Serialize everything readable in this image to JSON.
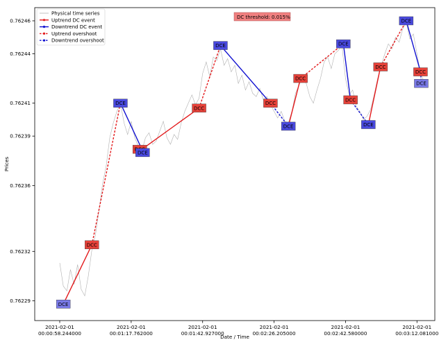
{
  "chart_data": {
    "type": "line",
    "title": "",
    "xlabel": "Date / Time",
    "ylabel": "Prices",
    "threshold_label": "DC threshold: 0.015%",
    "grid": false,
    "legend_position": "top-left",
    "x_ticks": [
      {
        "t": 58.244,
        "line1": "2021-02-01",
        "line2": "00:00:58.244000"
      },
      {
        "t": 77.762,
        "line1": "2021-02-01",
        "line2": "00:01:17.762000"
      },
      {
        "t": 102.927,
        "line1": "2021-02-01",
        "line2": "00:01:42.927000"
      },
      {
        "t": 146.205,
        "line1": "2021-02-01",
        "line2": "00:02:26.205000"
      },
      {
        "t": 162.58,
        "line1": "2021-02-01",
        "line2": "00:02:42.580000"
      },
      {
        "t": 192.081,
        "line1": "2021-02-01",
        "line2": "00:03:12.081000"
      }
    ],
    "x_tick_indices": [
      0,
      10,
      20,
      30,
      40,
      50
    ],
    "x_index_range": [
      -3.5,
      52.5
    ],
    "y_ticks": [
      "0.76229",
      "0.76232",
      "0.76236",
      "0.76239",
      "0.76241",
      "0.76244",
      "0.76246"
    ],
    "y_range": [
      0.762278,
      0.762468
    ],
    "legend": [
      {
        "label": "Physical time series",
        "color": "#b0b0b0",
        "style": "thin"
      },
      {
        "label": "Uptrend DC event",
        "color": "#e31a1c",
        "style": "solid"
      },
      {
        "label": "Downtrend DC event",
        "color": "#1010d0",
        "style": "solid"
      },
      {
        "label": "Uptrend overshoot",
        "color": "#e31a1c",
        "style": "dotted"
      },
      {
        "label": "Downtrend overshoot",
        "color": "#1010d0",
        "style": "dotted"
      }
    ],
    "colors": {
      "up": "#e31a1c",
      "down": "#1010d0",
      "dcc_box": "#e8423a",
      "dce_box": "#4a4ae0",
      "dce_light": "#7a7ae8",
      "threshold_box": "#f08080",
      "series": "#b0b0b0"
    },
    "segments": [
      {
        "kind": "up_dc",
        "from": [
          0.5,
          0.762288
        ],
        "to": [
          4.5,
          0.762324
        ]
      },
      {
        "kind": "up_os",
        "from": [
          4.5,
          0.762324
        ],
        "to": [
          8.5,
          0.76241
        ]
      },
      {
        "kind": "down_dc",
        "from": [
          8.5,
          0.76241
        ],
        "to": [
          11.5,
          0.762382
        ]
      },
      {
        "kind": "up_dc",
        "from": [
          11.5,
          0.762382
        ],
        "to": [
          19.5,
          0.762407
        ]
      },
      {
        "kind": "up_os",
        "from": [
          19.5,
          0.762407
        ],
        "to": [
          22.5,
          0.762445
        ]
      },
      {
        "kind": "down_dc",
        "from": [
          22.5,
          0.762445
        ],
        "to": [
          29.5,
          0.76241
        ]
      },
      {
        "kind": "down_os",
        "from": [
          29.5,
          0.76241
        ],
        "to": [
          32.0,
          0.762396
        ]
      },
      {
        "kind": "up_dc",
        "from": [
          32.0,
          0.762396
        ],
        "to": [
          33.7,
          0.762425
        ]
      },
      {
        "kind": "up_os",
        "from": [
          33.7,
          0.762425
        ],
        "to": [
          39.7,
          0.762446
        ]
      },
      {
        "kind": "down_dc",
        "from": [
          39.7,
          0.762446
        ],
        "to": [
          40.7,
          0.762412
        ]
      },
      {
        "kind": "down_os",
        "from": [
          40.7,
          0.762412
        ],
        "to": [
          43.2,
          0.762397
        ]
      },
      {
        "kind": "up_dc",
        "from": [
          43.2,
          0.762397
        ],
        "to": [
          44.9,
          0.762432
        ]
      },
      {
        "kind": "up_os",
        "from": [
          44.9,
          0.762432
        ],
        "to": [
          48.5,
          0.76246
        ]
      },
      {
        "kind": "down_dc",
        "from": [
          48.5,
          0.76246
        ],
        "to": [
          50.5,
          0.762429
        ]
      },
      {
        "kind": "down_os",
        "from": [
          50.5,
          0.762429
        ],
        "to": [
          50.6,
          0.762422
        ]
      }
    ],
    "markers": [
      {
        "text": "DCE",
        "type": "dce_light",
        "x": 0.5,
        "y": 0.762288
      },
      {
        "text": "DCC",
        "type": "dcc",
        "x": 4.5,
        "y": 0.762324
      },
      {
        "text": "DCE",
        "type": "dce",
        "x": 8.5,
        "y": 0.76241
      },
      {
        "text": "DCC",
        "type": "dcc",
        "x": 11.2,
        "y": 0.762382
      },
      {
        "text": "DCE",
        "type": "dce",
        "x": 11.6,
        "y": 0.76238
      },
      {
        "text": "DCC",
        "type": "dcc",
        "x": 19.5,
        "y": 0.762407
      },
      {
        "text": "DCE",
        "type": "dce",
        "x": 22.5,
        "y": 0.762445
      },
      {
        "text": "DCC",
        "type": "dcc",
        "x": 29.5,
        "y": 0.76241
      },
      {
        "text": "DCE",
        "type": "dce",
        "x": 32.0,
        "y": 0.762396
      },
      {
        "text": "DCC",
        "type": "dcc",
        "x": 33.7,
        "y": 0.762425
      },
      {
        "text": "DCE",
        "type": "dce",
        "x": 39.7,
        "y": 0.762446
      },
      {
        "text": "DCC",
        "type": "dcc",
        "x": 40.7,
        "y": 0.762412
      },
      {
        "text": "DCE",
        "type": "dce",
        "x": 43.2,
        "y": 0.762397
      },
      {
        "text": "DCC",
        "type": "dcc",
        "x": 44.9,
        "y": 0.762432
      },
      {
        "text": "DCE",
        "type": "dce",
        "x": 48.5,
        "y": 0.76246
      },
      {
        "text": "DCC",
        "type": "dcc",
        "x": 50.5,
        "y": 0.762429
      },
      {
        "text": "DCE",
        "type": "dce_light",
        "x": 50.6,
        "y": 0.762422
      }
    ],
    "series": [
      {
        "x": 0,
        "y": 0.762313
      },
      {
        "x": 0.5,
        "y": 0.762299
      },
      {
        "x": 1,
        "y": 0.762296
      },
      {
        "x": 1.5,
        "y": 0.762309
      },
      {
        "x": 2,
        "y": 0.7623
      },
      {
        "x": 2.5,
        "y": 0.762312
      },
      {
        "x": 3,
        "y": 0.762297
      },
      {
        "x": 3.5,
        "y": 0.762293
      },
      {
        "x": 4,
        "y": 0.762305
      },
      {
        "x": 4.5,
        "y": 0.762321
      },
      {
        "x": 5,
        "y": 0.76233
      },
      {
        "x": 5.5,
        "y": 0.762345
      },
      {
        "x": 6,
        "y": 0.762361
      },
      {
        "x": 6.5,
        "y": 0.762372
      },
      {
        "x": 7,
        "y": 0.762389
      },
      {
        "x": 7.5,
        "y": 0.762398
      },
      {
        "x": 8,
        "y": 0.762405
      },
      {
        "x": 8.5,
        "y": 0.76241
      },
      {
        "x": 9,
        "y": 0.762398
      },
      {
        "x": 9.5,
        "y": 0.762391
      },
      {
        "x": 10,
        "y": 0.762399
      },
      {
        "x": 10.5,
        "y": 0.762389
      },
      {
        "x": 11,
        "y": 0.762384
      },
      {
        "x": 11.5,
        "y": 0.762381
      },
      {
        "x": 12,
        "y": 0.762389
      },
      {
        "x": 12.5,
        "y": 0.762392
      },
      {
        "x": 13,
        "y": 0.762385
      },
      {
        "x": 13.5,
        "y": 0.762387
      },
      {
        "x": 14,
        "y": 0.762393
      },
      {
        "x": 14.5,
        "y": 0.762399
      },
      {
        "x": 15,
        "y": 0.762389
      },
      {
        "x": 15.5,
        "y": 0.762385
      },
      {
        "x": 16,
        "y": 0.762391
      },
      {
        "x": 16.5,
        "y": 0.762388
      },
      {
        "x": 17,
        "y": 0.762398
      },
      {
        "x": 17.5,
        "y": 0.762405
      },
      {
        "x": 18,
        "y": 0.76241
      },
      {
        "x": 18.5,
        "y": 0.762415
      },
      {
        "x": 19,
        "y": 0.762409
      },
      {
        "x": 19.5,
        "y": 0.762413
      },
      {
        "x": 20,
        "y": 0.762428
      },
      {
        "x": 20.5,
        "y": 0.762435
      },
      {
        "x": 21,
        "y": 0.762426
      },
      {
        "x": 21.5,
        "y": 0.762438
      },
      {
        "x": 22,
        "y": 0.762436
      },
      {
        "x": 22.5,
        "y": 0.762443
      },
      {
        "x": 23,
        "y": 0.762433
      },
      {
        "x": 23.5,
        "y": 0.762437
      },
      {
        "x": 24,
        "y": 0.762429
      },
      {
        "x": 24.5,
        "y": 0.762433
      },
      {
        "x": 25,
        "y": 0.762422
      },
      {
        "x": 25.5,
        "y": 0.762427
      },
      {
        "x": 26,
        "y": 0.762418
      },
      {
        "x": 26.5,
        "y": 0.762423
      },
      {
        "x": 27,
        "y": 0.762416
      },
      {
        "x": 27.5,
        "y": 0.762414
      },
      {
        "x": 28,
        "y": 0.762419
      },
      {
        "x": 28.5,
        "y": 0.762412
      },
      {
        "x": 29,
        "y": 0.762414
      },
      {
        "x": 29.5,
        "y": 0.762409
      },
      {
        "x": 30,
        "y": 0.762405
      },
      {
        "x": 30.5,
        "y": 0.762401
      },
      {
        "x": 31,
        "y": 0.762405
      },
      {
        "x": 31.5,
        "y": 0.762399
      },
      {
        "x": 32,
        "y": 0.762398
      },
      {
        "x": 32.5,
        "y": 0.762405
      },
      {
        "x": 33,
        "y": 0.762416
      },
      {
        "x": 33.5,
        "y": 0.762421
      },
      {
        "x": 34,
        "y": 0.762427
      },
      {
        "x": 34.5,
        "y": 0.762422
      },
      {
        "x": 35,
        "y": 0.762414
      },
      {
        "x": 35.5,
        "y": 0.76241
      },
      {
        "x": 36,
        "y": 0.762418
      },
      {
        "x": 36.5,
        "y": 0.762425
      },
      {
        "x": 37,
        "y": 0.762435
      },
      {
        "x": 37.5,
        "y": 0.762438
      },
      {
        "x": 38,
        "y": 0.762431
      },
      {
        "x": 38.5,
        "y": 0.76244
      },
      {
        "x": 39,
        "y": 0.762442
      },
      {
        "x": 39.5,
        "y": 0.762445
      },
      {
        "x": 40,
        "y": 0.762425
      },
      {
        "x": 40.5,
        "y": 0.762415
      },
      {
        "x": 41,
        "y": 0.762418
      },
      {
        "x": 41.5,
        "y": 0.762408
      },
      {
        "x": 42,
        "y": 0.762405
      },
      {
        "x": 42.5,
        "y": 0.7624
      },
      {
        "x": 43,
        "y": 0.762402
      },
      {
        "x": 43.5,
        "y": 0.762406
      },
      {
        "x": 44,
        "y": 0.762415
      },
      {
        "x": 44.5,
        "y": 0.762425
      },
      {
        "x": 45,
        "y": 0.762433
      },
      {
        "x": 45.5,
        "y": 0.76244
      },
      {
        "x": 46,
        "y": 0.762446
      },
      {
        "x": 46.5,
        "y": 0.762443
      },
      {
        "x": 47,
        "y": 0.76245
      },
      {
        "x": 47.5,
        "y": 0.762447
      },
      {
        "x": 48,
        "y": 0.762455
      },
      {
        "x": 48.5,
        "y": 0.762459
      },
      {
        "x": 49,
        "y": 0.762449
      },
      {
        "x": 49.5,
        "y": 0.762452
      },
      {
        "x": 50,
        "y": 0.76244
      },
      {
        "x": 50.5,
        "y": 0.762428
      },
      {
        "x": 51,
        "y": 0.762423
      }
    ]
  }
}
